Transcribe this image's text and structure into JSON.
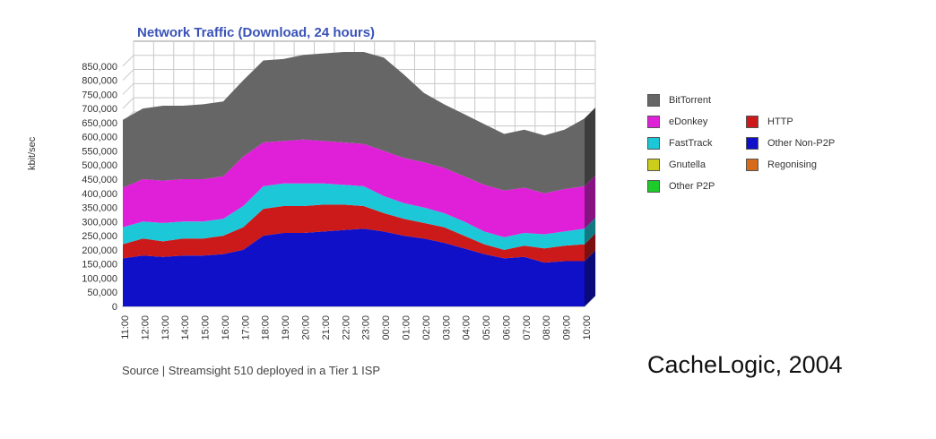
{
  "chart_data": {
    "type": "area",
    "title": "Network Traffic (Download, 24 hours)",
    "ylabel": "kbit/sec",
    "xlabel": "",
    "ylim": [
      0,
      900000
    ],
    "yticks": [
      0,
      50000,
      100000,
      150000,
      200000,
      250000,
      300000,
      350000,
      400000,
      450000,
      500000,
      550000,
      600000,
      650000,
      700000,
      750000,
      800000,
      850000
    ],
    "ytick_labels": [
      "0",
      "50,000",
      "100,000",
      "150,000",
      "200,000",
      "250,000",
      "300,000",
      "350,000",
      "400,000",
      "450,000",
      "500,000",
      "550,000",
      "600,000",
      "650,000",
      "700,000",
      "750,000",
      "800,000",
      "850,000"
    ],
    "x": [
      "11:00",
      "12:00",
      "13:00",
      "14:00",
      "15:00",
      "16:00",
      "17:00",
      "18:00",
      "19:00",
      "20:00",
      "21:00",
      "22:00",
      "23:00",
      "00:00",
      "01:00",
      "02:00",
      "03:00",
      "04:00",
      "05:00",
      "06:00",
      "07:00",
      "08:00",
      "09:00",
      "10:00"
    ],
    "stacked": true,
    "series": [
      {
        "name": "Other Non-P2P",
        "color": "#1010c8",
        "values": [
          170000,
          180000,
          175000,
          180000,
          180000,
          185000,
          200000,
          250000,
          260000,
          260000,
          265000,
          270000,
          275000,
          265000,
          250000,
          240000,
          225000,
          205000,
          185000,
          170000,
          175000,
          155000,
          160000,
          160000
        ]
      },
      {
        "name": "Regonising",
        "color": "#d46a1a",
        "values": [
          0,
          0,
          0,
          0,
          0,
          0,
          0,
          0,
          0,
          0,
          0,
          0,
          0,
          0,
          0,
          0,
          0,
          0,
          0,
          0,
          0,
          0,
          0,
          0
        ]
      },
      {
        "name": "HTTP",
        "color": "#cc1a1a",
        "values": [
          50000,
          60000,
          55000,
          60000,
          60000,
          65000,
          80000,
          95000,
          95000,
          95000,
          95000,
          90000,
          80000,
          65000,
          60000,
          55000,
          55000,
          45000,
          35000,
          30000,
          40000,
          50000,
          55000,
          60000
        ]
      },
      {
        "name": "Other P2P",
        "color": "#1ccc2a",
        "values": [
          0,
          0,
          0,
          0,
          0,
          0,
          0,
          0,
          0,
          0,
          0,
          0,
          0,
          0,
          0,
          0,
          0,
          0,
          0,
          0,
          0,
          0,
          0,
          0
        ]
      },
      {
        "name": "Gnutella",
        "color": "#cccc1a",
        "values": [
          0,
          0,
          0,
          0,
          0,
          0,
          0,
          0,
          0,
          0,
          0,
          0,
          0,
          0,
          0,
          0,
          0,
          0,
          0,
          0,
          0,
          0,
          0,
          0
        ]
      },
      {
        "name": "FastTrack",
        "color": "#1cc8d8",
        "values": [
          60000,
          60000,
          65000,
          60000,
          60000,
          60000,
          75000,
          80000,
          80000,
          80000,
          75000,
          70000,
          70000,
          60000,
          55000,
          55000,
          50000,
          50000,
          45000,
          45000,
          45000,
          50000,
          50000,
          55000
        ]
      },
      {
        "name": "eDonkey",
        "color": "#e020d8",
        "values": [
          140000,
          150000,
          150000,
          150000,
          150000,
          150000,
          175000,
          155000,
          150000,
          155000,
          150000,
          150000,
          150000,
          160000,
          160000,
          160000,
          160000,
          160000,
          165000,
          165000,
          160000,
          145000,
          150000,
          150000
        ]
      },
      {
        "name": "BitTorrent",
        "color": "#666666",
        "values": [
          240000,
          250000,
          265000,
          260000,
          265000,
          265000,
          270000,
          290000,
          290000,
          300000,
          310000,
          320000,
          325000,
          330000,
          295000,
          245000,
          225000,
          220000,
          215000,
          200000,
          205000,
          205000,
          210000,
          240000
        ]
      }
    ],
    "legend": {
      "placement": "right",
      "entries": [
        "BitTorrent",
        "eDonkey",
        "FastTrack",
        "Gnutella",
        "Other P2P",
        "HTTP",
        "Other Non-P2P",
        "Regonising"
      ]
    },
    "grid": true
  },
  "source_note": "Source | Streamsight 510 deployed in a Tier 1 ISP",
  "credit": "CacheLogic, 2004"
}
